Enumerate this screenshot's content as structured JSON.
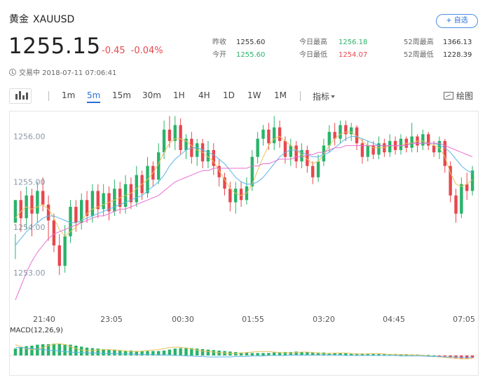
{
  "header": {
    "name": "黄金",
    "code": "XAUUSD",
    "watch_label": "+ 自选"
  },
  "quote": {
    "price": "1255.15",
    "change": "-0.45",
    "change_pct": "-0.04%",
    "status": "交易中 2018-07-11 07:06:41"
  },
  "stats": {
    "prev_close_label": "昨收",
    "prev_close": "1255.60",
    "open_label": "今开",
    "open": "1255.60",
    "high_label": "今日最高",
    "high": "1256.18",
    "low_label": "今日最低",
    "low": "1254.07",
    "w52_high_label": "52周最高",
    "w52_high": "1366.13",
    "w52_low_label": "52周最低",
    "w52_low": "1228.39"
  },
  "toolbar": {
    "chart_icon": "candlestick-icon",
    "intervals": [
      "1m",
      "5m",
      "15m",
      "30m",
      "1H",
      "4H",
      "1D",
      "1W",
      "1M"
    ],
    "active_interval": "5m",
    "indicator_label": "指标",
    "draw_label": "绘图"
  },
  "colors": {
    "up": "#29b36a",
    "down": "#e8474e",
    "accent": "#2b6fd6",
    "ma_fast": "#e8c25a",
    "ma_mid": "#5bb5e8",
    "ma_slow": "#e86fd3"
  },
  "chart_data": {
    "type": "candlestick",
    "y_ticks": [
      "1256.00",
      "1255.00",
      "1254.00",
      "1253.00"
    ],
    "y_tick_values": [
      1256.0,
      1255.0,
      1254.0,
      1253.0
    ],
    "ylim": [
      1252.35,
      1256.55
    ],
    "x_ticks": [
      "21:40",
      "23:05",
      "00:30",
      "01:55",
      "03:20",
      "04:45",
      "07:05"
    ],
    "grid": false,
    "candles": [
      [
        1254.1,
        1254.6,
        1253.85,
        1253.3
      ],
      [
        1254.6,
        1254.2,
        1254.8,
        1253.9
      ],
      [
        1254.2,
        1254.7,
        1254.9,
        1253.95
      ],
      [
        1254.7,
        1254.3,
        1254.85,
        1253.8
      ],
      [
        1254.3,
        1254.8,
        1255.0,
        1254.1
      ],
      [
        1254.8,
        1254.5,
        1255.1,
        1254.35
      ],
      [
        1254.5,
        1254.15,
        1254.7,
        1253.7
      ],
      [
        1254.15,
        1253.6,
        1254.3,
        1253.45
      ],
      [
        1253.6,
        1253.15,
        1253.85,
        1252.95
      ],
      [
        1253.15,
        1253.8,
        1254.05,
        1253.0
      ],
      [
        1253.8,
        1254.45,
        1254.6,
        1253.65
      ],
      [
        1254.45,
        1254.1,
        1254.6,
        1253.9
      ],
      [
        1254.1,
        1254.6,
        1254.75,
        1253.95
      ],
      [
        1254.6,
        1254.25,
        1254.8,
        1254.1
      ],
      [
        1254.25,
        1254.8,
        1254.95,
        1254.1
      ],
      [
        1254.8,
        1254.4,
        1254.95,
        1254.2
      ],
      [
        1254.4,
        1254.75,
        1254.95,
        1254.25
      ],
      [
        1254.75,
        1254.35,
        1254.9,
        1254.15
      ],
      [
        1254.35,
        1254.85,
        1255.05,
        1254.25
      ],
      [
        1254.85,
        1254.45,
        1255.0,
        1254.3
      ],
      [
        1254.45,
        1254.95,
        1255.15,
        1254.3
      ],
      [
        1254.95,
        1254.55,
        1255.1,
        1254.4
      ],
      [
        1254.55,
        1255.15,
        1255.35,
        1254.45
      ],
      [
        1255.15,
        1254.75,
        1255.25,
        1254.6
      ],
      [
        1254.75,
        1255.35,
        1255.55,
        1254.65
      ],
      [
        1255.35,
        1255.05,
        1255.45,
        1254.9
      ],
      [
        1255.05,
        1255.65,
        1255.85,
        1254.95
      ],
      [
        1255.65,
        1256.15,
        1256.35,
        1255.5
      ],
      [
        1256.15,
        1255.9,
        1256.45,
        1255.75
      ],
      [
        1255.9,
        1256.25,
        1256.45,
        1255.7
      ],
      [
        1256.25,
        1255.7,
        1256.4,
        1255.6
      ],
      [
        1255.7,
        1255.95,
        1256.05,
        1255.5
      ],
      [
        1255.95,
        1255.55,
        1256.1,
        1255.4
      ],
      [
        1255.55,
        1255.85,
        1255.95,
        1255.35
      ],
      [
        1255.85,
        1255.45,
        1255.95,
        1255.3
      ],
      [
        1255.45,
        1255.7,
        1255.9,
        1255.3
      ],
      [
        1255.7,
        1255.35,
        1255.85,
        1255.15
      ],
      [
        1255.35,
        1255.1,
        1255.5,
        1254.9
      ],
      [
        1255.1,
        1254.85,
        1255.2,
        1254.7
      ],
      [
        1254.85,
        1254.55,
        1255.0,
        1254.35
      ],
      [
        1254.55,
        1254.85,
        1255.0,
        1254.3
      ],
      [
        1254.85,
        1254.6,
        1255.0,
        1254.45
      ],
      [
        1254.6,
        1254.9,
        1255.1,
        1254.5
      ],
      [
        1254.9,
        1255.55,
        1255.7,
        1254.8
      ],
      [
        1255.55,
        1255.95,
        1256.1,
        1255.4
      ],
      [
        1255.95,
        1256.15,
        1256.25,
        1255.8
      ],
      [
        1256.15,
        1255.85,
        1256.3,
        1255.7
      ],
      [
        1255.85,
        1256.2,
        1256.45,
        1255.7
      ],
      [
        1256.2,
        1255.9,
        1256.35,
        1255.75
      ],
      [
        1255.9,
        1255.55,
        1256.0,
        1255.4
      ],
      [
        1255.55,
        1255.8,
        1255.95,
        1255.35
      ],
      [
        1255.8,
        1255.45,
        1255.9,
        1255.3
      ],
      [
        1255.45,
        1255.7,
        1255.85,
        1255.3
      ],
      [
        1255.7,
        1255.35,
        1255.8,
        1255.2
      ],
      [
        1255.35,
        1255.1,
        1255.45,
        1254.95
      ],
      [
        1255.1,
        1255.45,
        1255.6,
        1255.0
      ],
      [
        1255.45,
        1255.8,
        1255.95,
        1255.35
      ],
      [
        1255.8,
        1256.1,
        1256.25,
        1255.65
      ],
      [
        1256.1,
        1255.95,
        1256.3,
        1255.8
      ],
      [
        1255.95,
        1256.25,
        1256.35,
        1255.85
      ],
      [
        1256.25,
        1256.05,
        1256.35,
        1255.9
      ],
      [
        1256.05,
        1256.2,
        1256.3,
        1255.9
      ],
      [
        1256.2,
        1255.85,
        1256.25,
        1255.7
      ],
      [
        1255.85,
        1255.55,
        1255.95,
        1255.4
      ],
      [
        1255.55,
        1255.8,
        1255.9,
        1255.45
      ],
      [
        1255.8,
        1255.6,
        1255.9,
        1255.5
      ],
      [
        1255.6,
        1255.85,
        1256.0,
        1255.5
      ],
      [
        1255.85,
        1255.65,
        1255.95,
        1255.55
      ],
      [
        1255.65,
        1255.9,
        1256.05,
        1255.55
      ],
      [
        1255.9,
        1255.7,
        1256.0,
        1255.6
      ],
      [
        1255.7,
        1255.95,
        1256.05,
        1255.6
      ],
      [
        1255.95,
        1255.75,
        1256.0,
        1255.65
      ],
      [
        1255.75,
        1256.0,
        1256.3,
        1255.65
      ],
      [
        1256.0,
        1255.8,
        1256.05,
        1255.65
      ],
      [
        1255.8,
        1256.05,
        1256.15,
        1255.7
      ],
      [
        1256.05,
        1255.8,
        1256.1,
        1255.7
      ],
      [
        1255.8,
        1255.65,
        1255.9,
        1255.55
      ],
      [
        1255.65,
        1255.9,
        1256.0,
        1255.5
      ],
      [
        1255.9,
        1255.35,
        1255.95,
        1255.2
      ],
      [
        1255.35,
        1254.7,
        1255.45,
        1254.55
      ],
      [
        1254.7,
        1254.3,
        1254.85,
        1254.1
      ],
      [
        1254.3,
        1254.95,
        1255.1,
        1254.2
      ],
      [
        1254.95,
        1254.8,
        1255.2,
        1254.6
      ],
      [
        1254.8,
        1255.25,
        1255.35,
        1254.7
      ]
    ],
    "ma_fast": [
      1254.2,
      1254.35,
      1254.45,
      1254.4,
      1254.45,
      1254.5,
      1254.4,
      1254.2,
      1253.95,
      1253.8,
      1253.9,
      1254.0,
      1254.15,
      1254.3,
      1254.4,
      1254.45,
      1254.5,
      1254.55,
      1254.6,
      1254.65,
      1254.7,
      1254.75,
      1254.85,
      1254.95,
      1255.05,
      1255.2,
      1255.4,
      1255.65,
      1255.85,
      1255.95,
      1255.95,
      1255.9,
      1255.8,
      1255.7,
      1255.65,
      1255.55,
      1255.45,
      1255.25,
      1255.05,
      1254.85,
      1254.75,
      1254.7,
      1254.75,
      1254.95,
      1255.25,
      1255.55,
      1255.8,
      1255.95,
      1256.0,
      1255.9,
      1255.8,
      1255.7,
      1255.6,
      1255.5,
      1255.4,
      1255.45,
      1255.6,
      1255.8,
      1255.95,
      1256.05,
      1256.1,
      1256.1,
      1256.0,
      1255.9,
      1255.8,
      1255.75,
      1255.75,
      1255.75,
      1255.8,
      1255.8,
      1255.8,
      1255.85,
      1255.85,
      1255.9,
      1255.9,
      1255.85,
      1255.8,
      1255.75,
      1255.55,
      1255.2,
      1254.95,
      1254.9,
      1254.95,
      1255.05
    ],
    "ma_mid": [
      1253.6,
      1253.75,
      1253.9,
      1254.0,
      1254.1,
      1254.2,
      1254.25,
      1254.25,
      1254.2,
      1254.15,
      1254.1,
      1254.1,
      1254.15,
      1254.2,
      1254.25,
      1254.3,
      1254.35,
      1254.4,
      1254.45,
      1254.5,
      1254.55,
      1254.6,
      1254.65,
      1254.7,
      1254.8,
      1254.9,
      1255.0,
      1255.15,
      1255.35,
      1255.5,
      1255.6,
      1255.7,
      1255.75,
      1255.75,
      1255.7,
      1255.65,
      1255.6,
      1255.5,
      1255.4,
      1255.25,
      1255.1,
      1255.0,
      1254.95,
      1254.95,
      1255.0,
      1255.1,
      1255.25,
      1255.4,
      1255.55,
      1255.65,
      1255.7,
      1255.7,
      1255.65,
      1255.6,
      1255.55,
      1255.55,
      1255.6,
      1255.65,
      1255.75,
      1255.85,
      1255.95,
      1256.0,
      1256.0,
      1255.95,
      1255.9,
      1255.85,
      1255.8,
      1255.8,
      1255.8,
      1255.8,
      1255.8,
      1255.8,
      1255.85,
      1255.85,
      1255.85,
      1255.85,
      1255.85,
      1255.8,
      1255.75,
      1255.65,
      1255.5,
      1255.35,
      1255.25,
      1255.2
    ],
    "ma_slow": [
      1252.4,
      1252.7,
      1253.0,
      1253.25,
      1253.45,
      1253.6,
      1253.75,
      1253.85,
      1253.9,
      1253.95,
      1254.0,
      1254.05,
      1254.1,
      1254.15,
      1254.2,
      1254.25,
      1254.25,
      1254.3,
      1254.35,
      1254.4,
      1254.4,
      1254.45,
      1254.5,
      1254.55,
      1254.6,
      1254.65,
      1254.7,
      1254.8,
      1254.9,
      1255.0,
      1255.05,
      1255.1,
      1255.15,
      1255.2,
      1255.25,
      1255.25,
      1255.3,
      1255.3,
      1255.3,
      1255.3,
      1255.3,
      1255.3,
      1255.3,
      1255.35,
      1255.35,
      1255.4,
      1255.4,
      1255.45,
      1255.5,
      1255.5,
      1255.5,
      1255.55,
      1255.55,
      1255.6,
      1255.6,
      1255.65,
      1255.65,
      1255.7,
      1255.75,
      1255.75,
      1255.8,
      1255.8,
      1255.8,
      1255.8,
      1255.8,
      1255.8,
      1255.8,
      1255.8,
      1255.8,
      1255.8,
      1255.8,
      1255.8,
      1255.85,
      1255.85,
      1255.85,
      1255.85,
      1255.85,
      1255.85,
      1255.8,
      1255.75,
      1255.7,
      1255.65,
      1255.6,
      1255.55
    ],
    "macd_label": "MACD(12,26,9)",
    "macd_hist": [
      0.14,
      0.17,
      0.19,
      0.2,
      0.22,
      0.23,
      0.23,
      0.24,
      0.24,
      0.23,
      0.22,
      0.2,
      0.18,
      0.16,
      0.15,
      0.14,
      0.13,
      0.12,
      0.12,
      0.11,
      0.1,
      0.1,
      0.09,
      0.09,
      0.09,
      0.09,
      0.09,
      0.1,
      0.12,
      0.14,
      0.15,
      0.16,
      0.15,
      0.14,
      0.13,
      0.12,
      0.11,
      0.1,
      0.09,
      0.08,
      0.07,
      0.06,
      0.06,
      0.05,
      0.05,
      0.05,
      0.05,
      0.06,
      0.06,
      0.07,
      0.07,
      0.08,
      0.07,
      0.07,
      0.06,
      0.06,
      0.06,
      0.05,
      0.05,
      0.05,
      0.05,
      0.04,
      0.04,
      0.04,
      0.04,
      0.03,
      0.03,
      0.03,
      0.03,
      0.03,
      0.02,
      0.02,
      0.02,
      0.02,
      0.01,
      0.01,
      0.0,
      -0.01,
      -0.02,
      -0.04,
      -0.05,
      -0.06,
      -0.06,
      -0.05
    ],
    "macd_diff": [
      0.22,
      0.18,
      0.14,
      0.12,
      0.13,
      0.16,
      0.2,
      0.23,
      0.24,
      0.22,
      0.18,
      0.14,
      0.11,
      0.1,
      0.1,
      0.11,
      0.12,
      0.12,
      0.11,
      0.1,
      0.09,
      0.08,
      0.08,
      0.09,
      0.1,
      0.11,
      0.12,
      0.14,
      0.16,
      0.17,
      0.17,
      0.15,
      0.13,
      0.11,
      0.09,
      0.08,
      0.07,
      0.06,
      0.05,
      0.04,
      0.04,
      0.05,
      0.06,
      0.07,
      0.08,
      0.08,
      0.08,
      0.07,
      0.06,
      0.05,
      0.05,
      0.06,
      0.07,
      0.07,
      0.06,
      0.05,
      0.04,
      0.04,
      0.05,
      0.05,
      0.05,
      0.04,
      0.03,
      0.03,
      0.03,
      0.04,
      0.04,
      0.03,
      0.02,
      0.02,
      0.02,
      0.02,
      0.01,
      0.01,
      0.0,
      -0.01,
      -0.02,
      -0.03,
      -0.04,
      -0.05,
      -0.06,
      -0.07,
      -0.07,
      -0.06
    ],
    "macd_dea": [
      0.16,
      0.16,
      0.15,
      0.14,
      0.13,
      0.12,
      0.11,
      0.1,
      0.09,
      0.08,
      0.07,
      0.06,
      0.06,
      0.05,
      0.05,
      0.05,
      0.04,
      0.04,
      0.04,
      0.03,
      0.03,
      0.03,
      0.02,
      0.02,
      0.02,
      0.02,
      0.01,
      0.01,
      0.01,
      0.0,
      0.0,
      -0.01,
      -0.01,
      -0.02,
      -0.02,
      -0.03,
      -0.03,
      -0.03,
      -0.03,
      -0.03,
      -0.02,
      -0.02,
      -0.02,
      -0.01,
      -0.01,
      -0.01,
      0.0,
      0.0,
      0.0,
      0.0,
      0.01,
      0.01,
      0.01,
      0.01,
      0.01,
      0.01,
      0.01,
      0.01,
      0.01,
      0.01,
      0.0,
      0.0,
      0.0,
      0.0,
      0.0,
      0.0,
      0.0,
      0.0,
      0.0,
      0.0,
      -0.01,
      -0.01,
      -0.01,
      -0.01,
      -0.01,
      -0.02,
      -0.02,
      -0.02,
      -0.03,
      -0.03,
      -0.03,
      -0.04,
      -0.04,
      -0.04
    ]
  }
}
